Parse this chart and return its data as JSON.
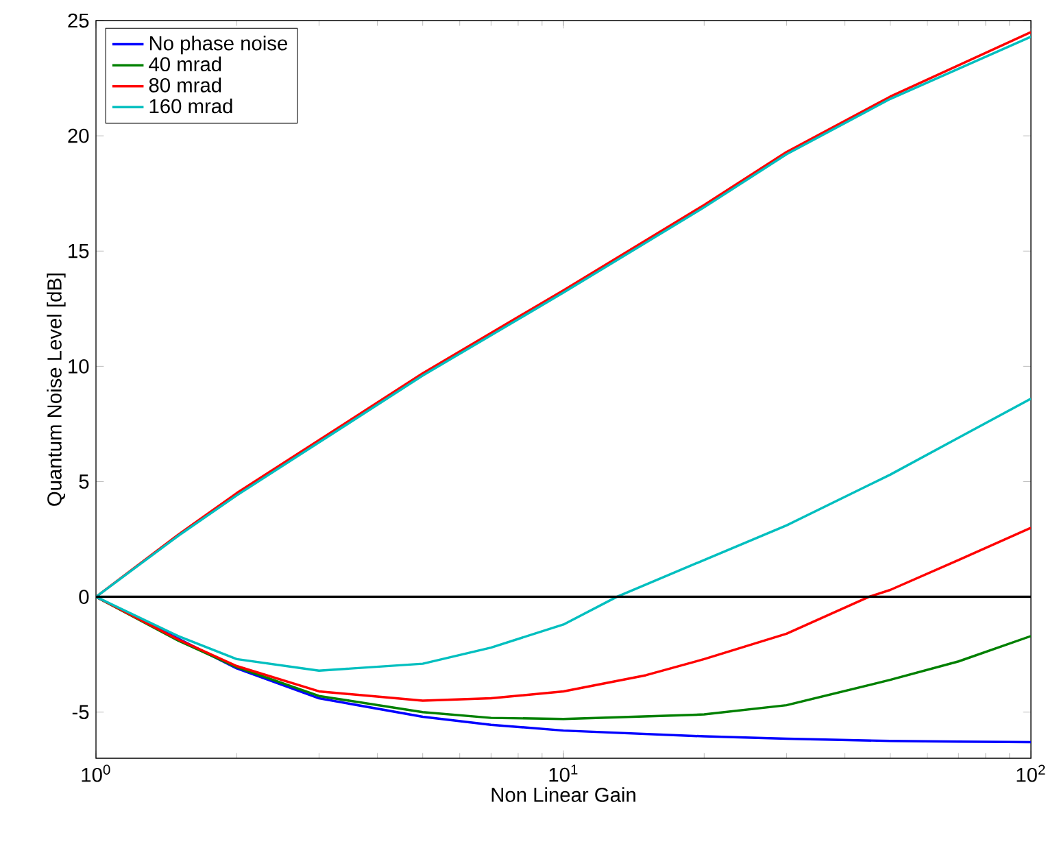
{
  "chart_data": {
    "type": "line",
    "xlabel": "Non Linear Gain",
    "ylabel": "Quantum Noise Level [dB]",
    "log": "x",
    "xlim": [
      1,
      100
    ],
    "ylim": [
      -7,
      25
    ],
    "xticks": [
      {
        "value": 1,
        "label": "10$^{0}$"
      },
      {
        "value": 10,
        "label": "10$^{1}$"
      },
      {
        "value": 100,
        "label": "10$^{2}$"
      }
    ],
    "yticks": [
      -5,
      0,
      5,
      10,
      15,
      20,
      25
    ],
    "legend": "top left",
    "ref_lines": [
      {
        "axis": "y",
        "value": 0,
        "color": "#000000"
      }
    ],
    "series": [
      {
        "name": "No phase noise",
        "color": "#0000ff",
        "x": [
          1,
          1.5,
          2,
          3,
          5,
          7,
          10,
          20,
          30,
          50,
          70,
          100
        ],
        "values": [
          0,
          null,
          -3.1,
          -4.4,
          -5.2,
          -5.55,
          -5.8,
          -6.05,
          -6.15,
          -6.25,
          -6.28,
          -6.3
        ]
      },
      {
        "name": "40 mrad",
        "color": "#008000",
        "x": [
          1,
          1.5,
          2,
          3,
          5,
          7,
          10,
          20,
          30,
          50,
          70,
          100
        ],
        "values": [
          0,
          -1.9,
          -3.05,
          -4.3,
          -5.0,
          -5.25,
          -5.3,
          -5.1,
          -4.7,
          -3.6,
          -2.8,
          -1.7
        ]
      },
      {
        "name": "80 mrad",
        "color": "#ff0000",
        "x": [
          1,
          1.5,
          2,
          3,
          5,
          7,
          10,
          15,
          20,
          30,
          45,
          50,
          70,
          100
        ],
        "values": [
          0,
          -1.85,
          -3.0,
          -4.1,
          -4.5,
          -4.4,
          -4.1,
          -3.4,
          -2.7,
          -1.6,
          0,
          0.3,
          1.6,
          3.0
        ]
      },
      {
        "name": "160 mrad",
        "color": "#00bfbf",
        "x": [
          1,
          1.5,
          2,
          3,
          5,
          7,
          10,
          13,
          20,
          30,
          50,
          70,
          100
        ],
        "values": [
          0,
          -1.7,
          -2.7,
          -3.2,
          -2.9,
          -2.2,
          -1.2,
          0,
          1.6,
          3.1,
          5.3,
          6.9,
          8.6
        ]
      },
      {
        "color": "#ff0000",
        "x": [
          1,
          1.5,
          2,
          3,
          5,
          10,
          20,
          30,
          50,
          100
        ],
        "values": [
          0,
          2.7,
          4.5,
          6.8,
          9.7,
          13.3,
          17.0,
          19.3,
          21.7,
          24.5
        ]
      },
      {
        "color": "#00bfbf",
        "x": [
          1,
          1.5,
          2,
          3,
          5,
          10,
          20,
          30,
          50,
          100
        ],
        "values": [
          0,
          2.65,
          4.4,
          6.7,
          9.6,
          13.2,
          16.9,
          19.2,
          21.6,
          24.3
        ]
      }
    ]
  }
}
